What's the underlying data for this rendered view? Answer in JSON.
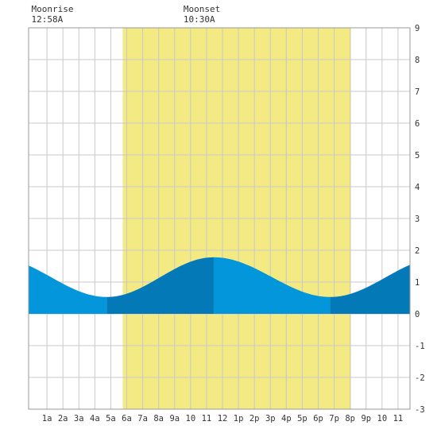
{
  "chart_data": {
    "type": "area",
    "title": "",
    "xlabel": "",
    "ylabel": "",
    "x_unit": "hour of day",
    "xlim": [
      -0.15,
      23.75
    ],
    "ylim": [
      -3,
      9
    ],
    "yticks": [
      -3,
      -2,
      -1,
      0,
      1,
      2,
      3,
      4,
      5,
      6,
      7,
      8,
      9
    ],
    "xtick_labels": [
      "1a",
      "2a",
      "3a",
      "4a",
      "5a",
      "6a",
      "7a",
      "8a",
      "9a",
      "10",
      "11",
      "12",
      "1p",
      "2p",
      "3p",
      "4p",
      "5p",
      "6p",
      "7p",
      "8p",
      "9p",
      "10",
      "11"
    ],
    "grid": true,
    "daylight": {
      "start": 5.75,
      "end": 20.05,
      "color": "#f3ea83"
    },
    "tide_extremes": [
      {
        "time": 4.75,
        "height": 0.53
      },
      {
        "time": 11.45,
        "height": 1.78
      },
      {
        "time": 18.75,
        "height": 0.53
      }
    ],
    "series_color_light": "#0396db",
    "series_color_dark": "#0379b8",
    "moon_events": [
      {
        "label": "Moonrise",
        "time": "12:58A",
        "hour": 0.97
      },
      {
        "label": "Moonset",
        "time": "10:30A",
        "hour": 10.5
      }
    ]
  }
}
